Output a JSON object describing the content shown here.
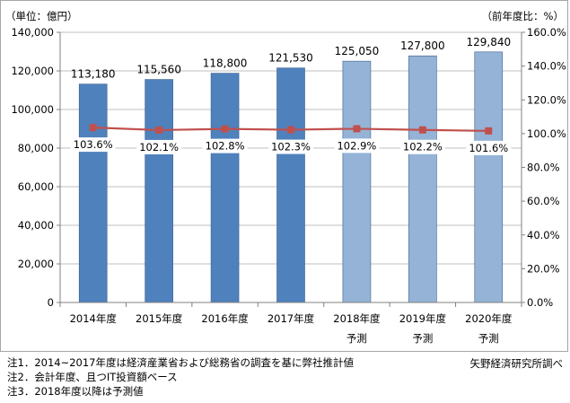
{
  "chart_data": {
    "type": "bar",
    "left_unit_label": "（単位：億円）",
    "right_unit_label": "（前年度比：%）",
    "categories": [
      "2014年度",
      "2015年度",
      "2016年度",
      "2017年度",
      "2018年度",
      "2019年度",
      "2020年度"
    ],
    "category_sublabels": [
      "",
      "",
      "",
      "",
      "予測",
      "予測",
      "予測"
    ],
    "series": [
      {
        "type": "bar",
        "values": [
          113180,
          115560,
          118800,
          121530,
          125050,
          127800,
          129840
        ],
        "value_labels": [
          "113,180",
          "115,560",
          "118,800",
          "121,530",
          "125,050",
          "127,800",
          "129,840"
        ],
        "colors": [
          "#4f81bd",
          "#4f81bd",
          "#4f81bd",
          "#4f81bd",
          "#95b3d7",
          "#95b3d7",
          "#95b3d7"
        ]
      },
      {
        "type": "line",
        "axis": "right",
        "values": [
          103.6,
          102.1,
          102.8,
          102.3,
          102.9,
          102.2,
          101.6
        ],
        "value_labels": [
          "103.6%",
          "102.1%",
          "102.8%",
          "102.3%",
          "102.9%",
          "102.2%",
          "101.6%"
        ],
        "color": "#c0504d"
      }
    ],
    "y_left": {
      "min": 0,
      "max": 140000,
      "step": 20000,
      "ticks": [
        "0",
        "20,000",
        "40,000",
        "60,000",
        "80,000",
        "100,000",
        "120,000",
        "140,000"
      ]
    },
    "y_right": {
      "min": 0,
      "max": 160,
      "step": 20,
      "ticks": [
        "0.0%",
        "20.0%",
        "40.0%",
        "60.0%",
        "80.0%",
        "100.0%",
        "120.0%",
        "140.0%",
        "160.0%"
      ]
    },
    "grid": true
  },
  "notes": [
    "注1．2014~2017年度は経済産業省および総務省の調査を基に弊社推計値",
    "注2．会計年度、且つIT投資額ベース",
    "注3．2018年度以降は予測値"
  ],
  "source": "矢野経済研究所調べ"
}
